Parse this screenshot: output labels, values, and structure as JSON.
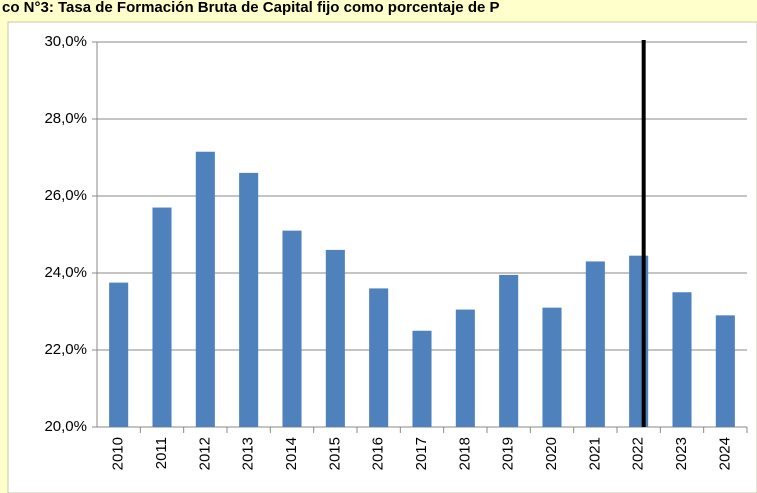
{
  "chart_data": {
    "type": "bar",
    "title": "co N°3: Tasa de Formación Bruta de Capital fijo como porcentaje de P",
    "categories": [
      "2010",
      "2011",
      "2012",
      "2013",
      "2014",
      "2015",
      "2016",
      "2017",
      "2018",
      "2019",
      "2020",
      "2021",
      "2022",
      "2023",
      "2024"
    ],
    "values": [
      23.75,
      25.7,
      27.15,
      26.6,
      25.1,
      24.6,
      23.6,
      22.5,
      23.05,
      23.95,
      23.1,
      24.3,
      24.45,
      23.5,
      22.9
    ],
    "color": "#4f81bd",
    "ylim": [
      20,
      30
    ],
    "yticks": [
      {
        "value": 20,
        "label": "20,0%"
      },
      {
        "value": 22,
        "label": "22,0%"
      },
      {
        "value": 24,
        "label": "24,0%"
      },
      {
        "value": 26,
        "label": "26,0%"
      },
      {
        "value": 28,
        "label": "28,0%"
      },
      {
        "value": 30,
        "label": "30,0%"
      }
    ],
    "grid": true
  }
}
